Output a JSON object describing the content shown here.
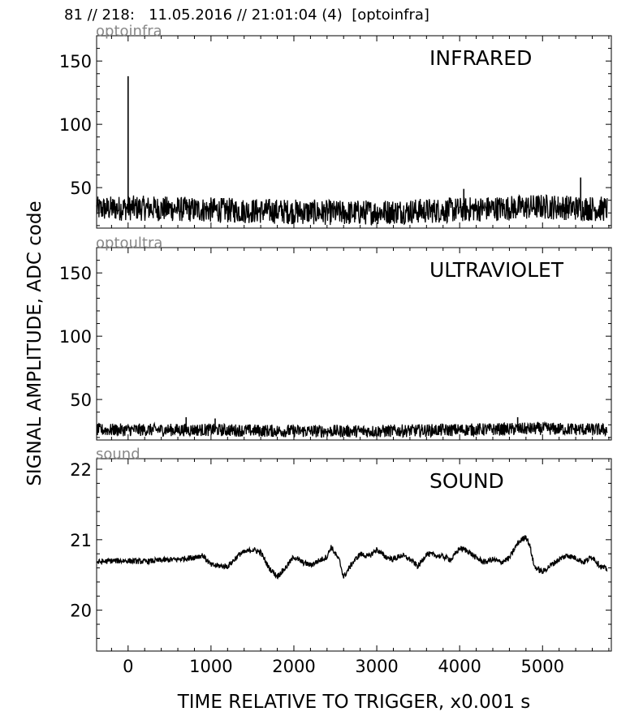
{
  "header": {
    "text": "81 // 218:   11.05.2016 // 21:01:04 (4)  [optoinfra]"
  },
  "figure": {
    "ylabel": "SIGNAL AMPLITUDE,  ADC code",
    "xlabel": "TIME RELATIVE TO TRIGGER,   x0.001 s"
  },
  "chart_data": [
    {
      "type": "line",
      "channel_label": "optoinfra",
      "panel_title": "INFRARED",
      "xlim": [
        -380,
        5830
      ],
      "ylim": [
        18,
        170
      ],
      "x_ticks": [
        0,
        1000,
        2000,
        3000,
        4000,
        5000
      ],
      "y_ticks": [
        50,
        100,
        150
      ],
      "x_tick_labels_visible": false,
      "series": [
        {
          "baseline": 32,
          "noise": 10,
          "x": [
            -380,
            0,
            600,
            1200,
            2000,
            2600,
            3200,
            3800,
            4200,
            4600,
            5000,
            5400,
            5780
          ],
          "y": [
            33,
            34,
            33,
            32,
            31,
            30,
            31,
            32,
            33,
            34,
            35,
            34,
            33
          ],
          "spikes": [
            {
              "x": 0,
              "y": 138
            },
            {
              "x": 5460,
              "y": 58
            },
            {
              "x": 4050,
              "y": 49
            }
          ]
        }
      ]
    },
    {
      "type": "line",
      "channel_label": "optoultra",
      "panel_title": "ULTRAVIOLET",
      "xlim": [
        -380,
        5830
      ],
      "ylim": [
        18,
        170
      ],
      "x_ticks": [
        0,
        1000,
        2000,
        3000,
        4000,
        5000
      ],
      "y_ticks": [
        50,
        100,
        150
      ],
      "x_tick_labels_visible": false,
      "series": [
        {
          "baseline": 26,
          "noise": 5,
          "x": [
            -380,
            1000,
            2000,
            3000,
            4000,
            5000,
            5780
          ],
          "y": [
            26,
            26,
            25,
            25,
            26,
            27,
            26
          ],
          "spikes": [
            {
              "x": 700,
              "y": 36
            },
            {
              "x": 1050,
              "y": 35
            },
            {
              "x": 4700,
              "y": 36
            }
          ]
        }
      ]
    },
    {
      "type": "line",
      "channel_label": "sound",
      "panel_title": "SOUND",
      "xlim": [
        -380,
        5830
      ],
      "ylim": [
        19.42,
        22.15
      ],
      "x_ticks": [
        0,
        1000,
        2000,
        3000,
        4000,
        5000
      ],
      "x_tick_labels": [
        "0",
        "1000",
        "2000",
        "3000",
        "4000",
        "5000"
      ],
      "y_ticks": [
        20,
        21,
        22
      ],
      "x_tick_labels_visible": true,
      "series": [
        {
          "noise": 0.04,
          "x": [
            -380,
            -200,
            0,
            200,
            400,
            600,
            800,
            900,
            1000,
            1200,
            1350,
            1500,
            1600,
            1700,
            1800,
            1900,
            2000,
            2100,
            2200,
            2300,
            2400,
            2450,
            2550,
            2600,
            2700,
            2800,
            2900,
            3000,
            3100,
            3200,
            3300,
            3400,
            3500,
            3600,
            3700,
            3800,
            3900,
            4000,
            4100,
            4200,
            4300,
            4400,
            4500,
            4600,
            4700,
            4800,
            4850,
            4900,
            5000,
            5100,
            5200,
            5300,
            5400,
            5500,
            5600,
            5700,
            5780
          ],
          "y": [
            20.68,
            20.7,
            20.7,
            20.69,
            20.71,
            20.72,
            20.75,
            20.78,
            20.64,
            20.62,
            20.8,
            20.86,
            20.82,
            20.6,
            20.48,
            20.6,
            20.76,
            20.68,
            20.64,
            20.7,
            20.76,
            20.9,
            20.7,
            20.47,
            20.66,
            20.8,
            20.76,
            20.86,
            20.76,
            20.72,
            20.78,
            20.72,
            20.62,
            20.8,
            20.78,
            20.76,
            20.72,
            20.88,
            20.84,
            20.74,
            20.68,
            20.72,
            20.68,
            20.74,
            20.95,
            21.05,
            20.9,
            20.62,
            20.54,
            20.64,
            20.72,
            20.78,
            20.74,
            20.68,
            20.76,
            20.62,
            20.58
          ]
        }
      ]
    }
  ]
}
